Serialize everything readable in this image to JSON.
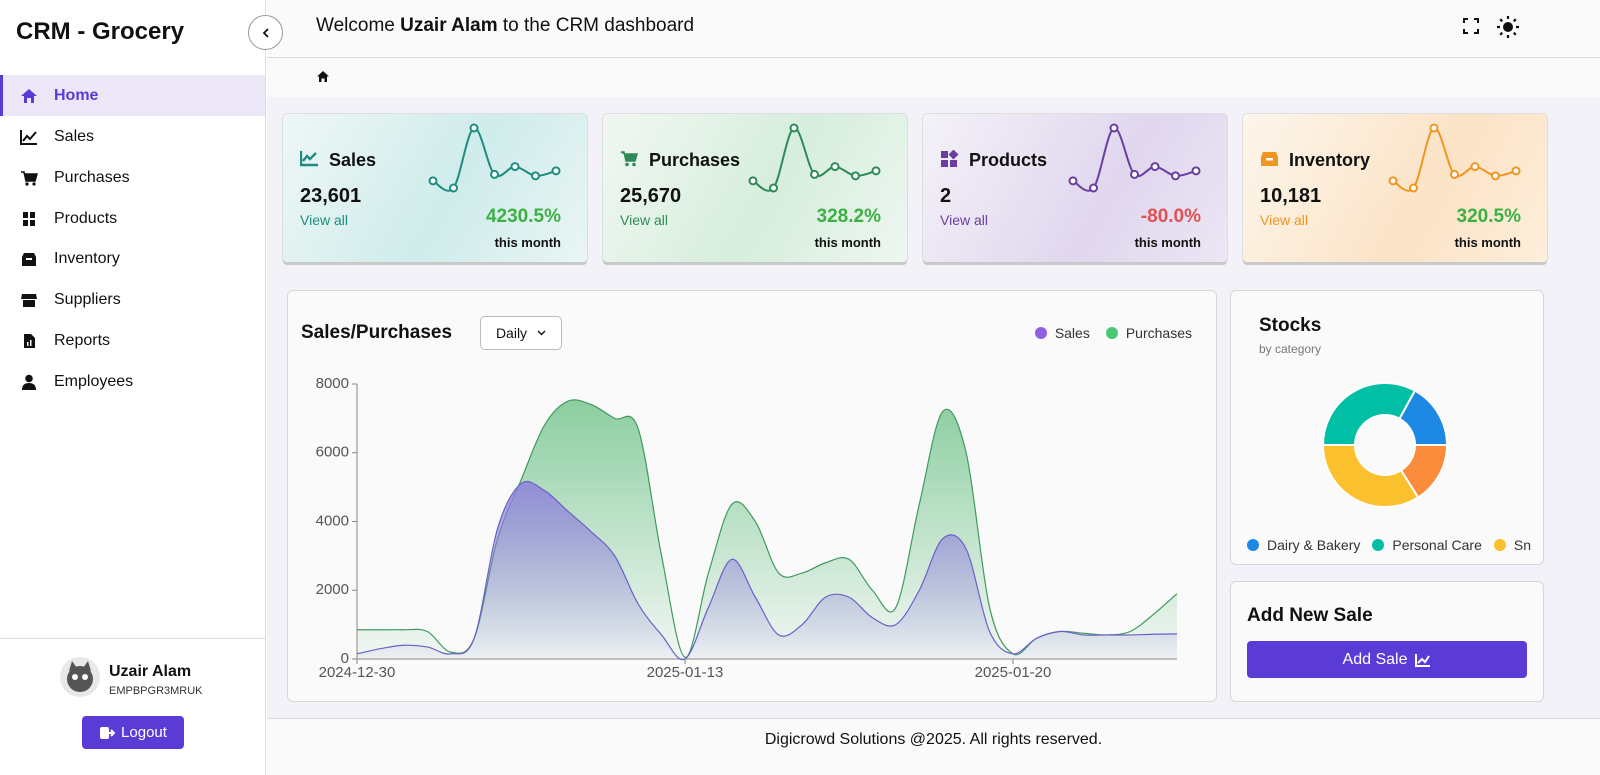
{
  "sidebar": {
    "brand": "CRM - Grocery",
    "nav": [
      "Home",
      "Sales",
      "Purchases",
      "Products",
      "Inventory",
      "Suppliers",
      "Reports",
      "Employees"
    ],
    "user": {
      "name": "Uzair Alam",
      "id": "EMPBPGR3MRUK"
    },
    "logout": "Logout"
  },
  "header": {
    "welcome_prefix": "Welcome",
    "user_name": "Uzair Alam",
    "welcome_suffix": "to the CRM dashboard"
  },
  "cards": [
    {
      "title": "Sales",
      "value": "23,601",
      "link": "View all",
      "change": "4230.5%",
      "period": "this month",
      "color": "#1e8c80",
      "sparkline": [
        3.6,
        2.6,
        11,
        4.5,
        5.6,
        4.3,
        5
      ]
    },
    {
      "title": "Purchases",
      "value": "25,670",
      "link": "View all",
      "change": "328.2%",
      "period": "this month",
      "color": "#2e8b57",
      "sparkline": [
        3.6,
        2.6,
        11,
        4.5,
        5.6,
        4.3,
        5
      ]
    },
    {
      "title": "Products",
      "value": "2",
      "link": "View all",
      "change": "-80.0%",
      "period": "this month",
      "color": "#6a3ea1",
      "sparkline": [
        3.6,
        2.6,
        11,
        4.5,
        5.6,
        4.3,
        5
      ]
    },
    {
      "title": "Inventory",
      "value": "10,181",
      "link": "View all",
      "change": "320.5%",
      "period": "this month",
      "color": "#f0961e",
      "sparkline": [
        3.6,
        2.6,
        11,
        4.5,
        5.6,
        4.3,
        5
      ]
    }
  ],
  "chart_data": [
    {
      "type": "area",
      "title": "Sales/Purchases",
      "dropdown": "Daily",
      "categories": [
        "2024-12-30",
        null,
        null,
        null,
        null,
        null,
        null,
        null,
        null,
        null,
        null,
        null,
        null,
        null,
        "2025-01-13",
        null,
        null,
        null,
        null,
        null,
        null,
        null,
        null,
        null,
        null,
        null,
        null,
        null,
        "2025-01-20",
        null,
        null,
        null,
        null,
        null,
        null,
        null
      ],
      "series": [
        {
          "name": "Sales",
          "color": "#8e5fe0",
          "values": [
            150,
            300,
            400,
            350,
            150,
            600,
            3800,
            5100,
            4900,
            4300,
            3700,
            3000,
            1600,
            700,
            0,
            1500,
            2900,
            1800,
            700,
            1000,
            1800,
            1800,
            1200,
            1000,
            2000,
            3500,
            3200,
            800,
            150,
            600,
            800,
            700,
            700,
            700,
            720,
            730
          ]
        },
        {
          "name": "Purchases",
          "color": "#48c774",
          "values": [
            850,
            850,
            850,
            800,
            200,
            600,
            3500,
            5200,
            6800,
            7500,
            7400,
            7000,
            6700,
            3000,
            50,
            2500,
            4500,
            4000,
            2500,
            2500,
            2800,
            2900,
            2000,
            1500,
            4500,
            7200,
            6000,
            1500,
            150,
            600,
            800,
            750,
            700,
            800,
            1300,
            1900
          ]
        }
      ],
      "ylim": [
        0,
        8000
      ],
      "yticks": [
        0,
        2000,
        4000,
        6000,
        8000
      ]
    },
    {
      "type": "donut",
      "title": "Stocks",
      "subtitle": "by category",
      "categories": [
        "Dairy & Bakery",
        "Personal Care",
        "Sn",
        null
      ],
      "values": [
        17,
        33,
        34,
        16
      ],
      "colors": [
        "#1e88e5",
        "#00bfa5",
        "#fbc02d",
        "#fb8c3c"
      ]
    }
  ],
  "sale_panel": {
    "title": "Add New Sale",
    "button": "Add Sale"
  },
  "footer": "Digicrowd Solutions @2025. All rights reserved."
}
